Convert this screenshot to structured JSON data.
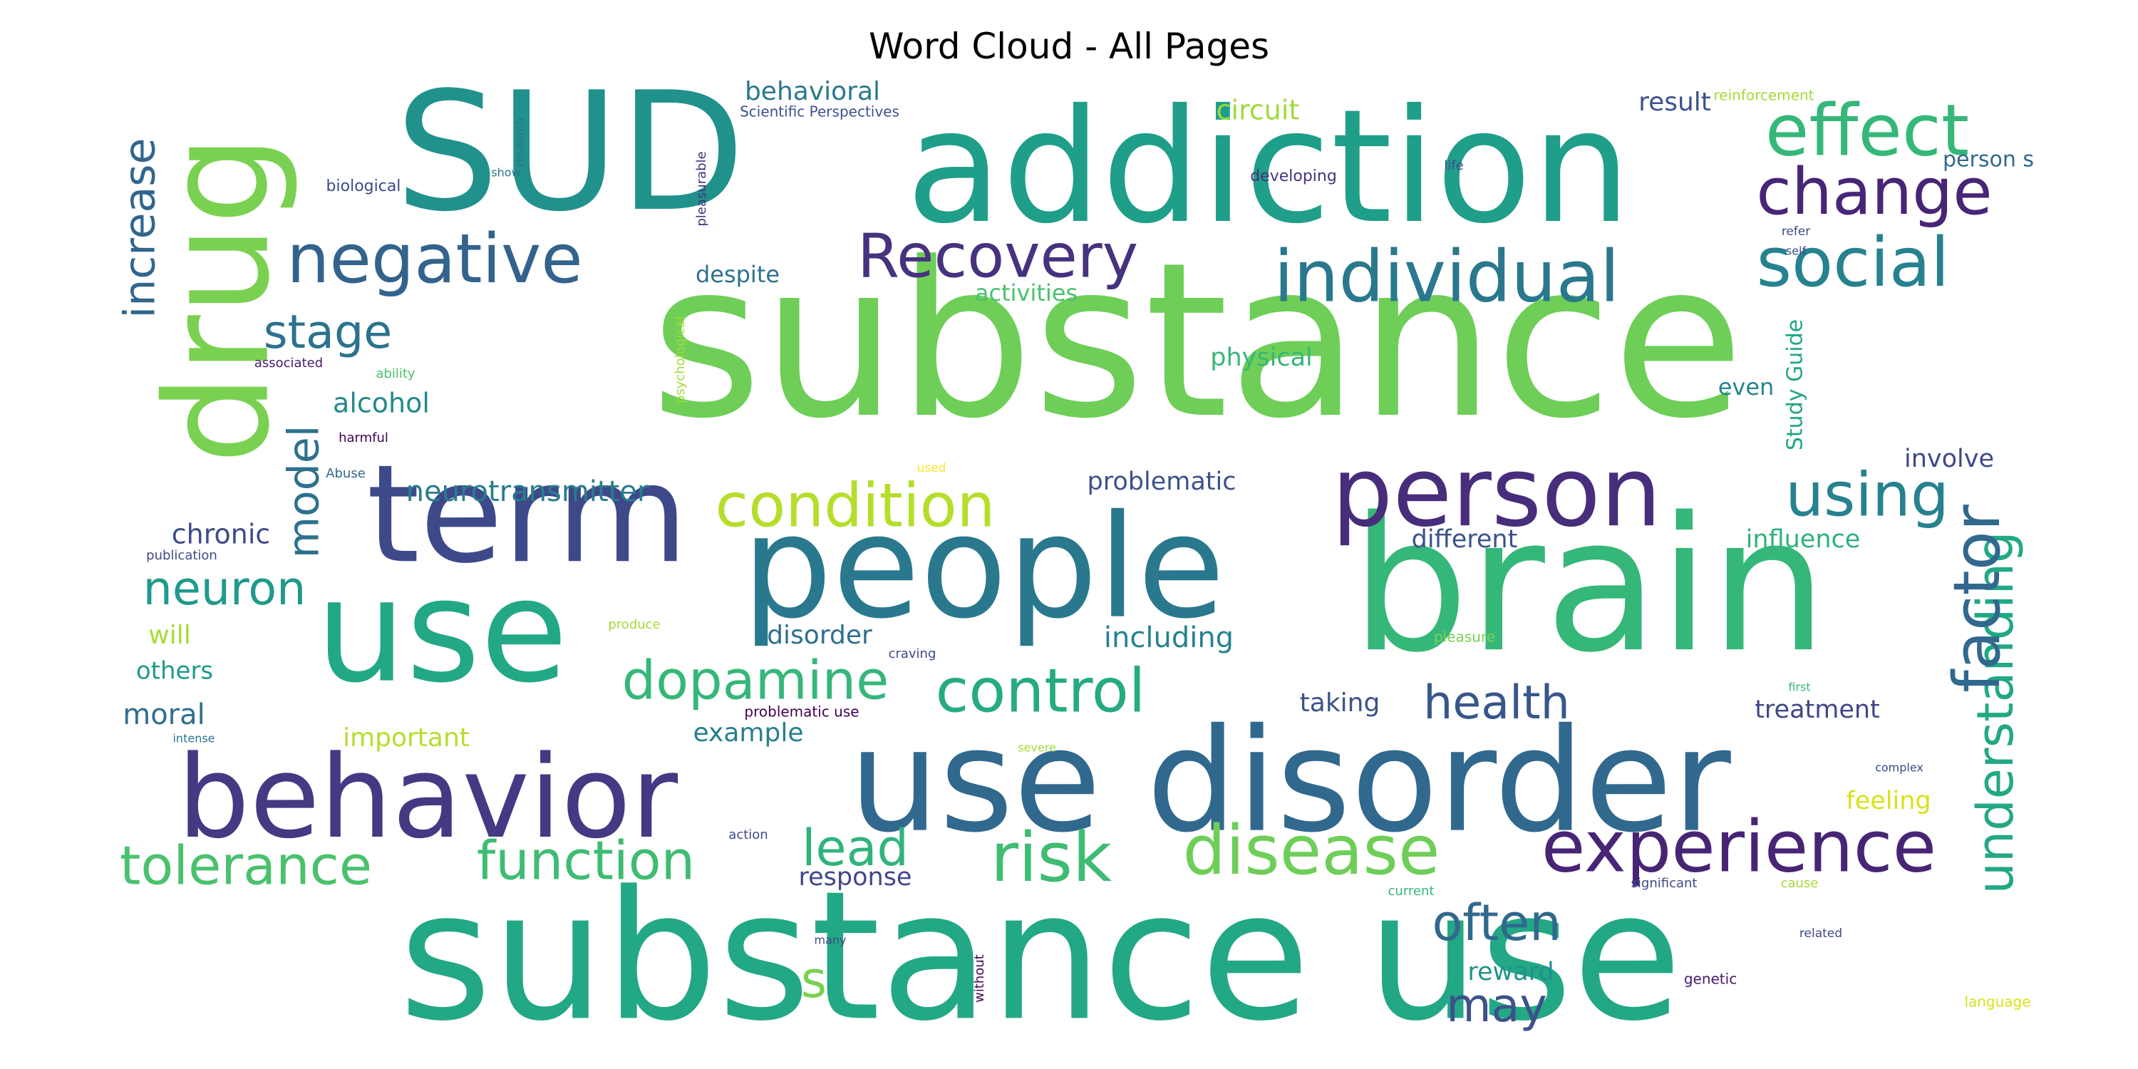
{
  "title": "Word Cloud - All Pages",
  "words": [
    {
      "text": "substance",
      "color": "#6ece58"
    },
    {
      "text": "substance use",
      "color": "#22a884"
    },
    {
      "text": "use disorder",
      "color": "#31688e"
    },
    {
      "text": "brain",
      "color": "#35b779"
    },
    {
      "text": "addiction",
      "color": "#1f9e89"
    },
    {
      "text": "SUD",
      "color": "#21918c"
    },
    {
      "text": "people",
      "color": "#2a788e"
    },
    {
      "text": "use",
      "color": "#22a884"
    },
    {
      "text": "behavior",
      "color": "#443983"
    },
    {
      "text": "term",
      "color": "#3e4989"
    },
    {
      "text": "drug",
      "color": "#7ad151"
    },
    {
      "text": "person",
      "color": "#472d7b"
    },
    {
      "text": "effect",
      "color": "#35b779"
    },
    {
      "text": "change",
      "color": "#482576"
    },
    {
      "text": "individual",
      "color": "#2a788e"
    },
    {
      "text": "social",
      "color": "#26828e"
    },
    {
      "text": "negative",
      "color": "#33638d"
    },
    {
      "text": "Recovery",
      "color": "#46327e"
    },
    {
      "text": "understanding",
      "color": "#22a884"
    },
    {
      "text": "experience",
      "color": "#482475"
    },
    {
      "text": "disease",
      "color": "#6ece58"
    },
    {
      "text": "risk",
      "color": "#3fbc73"
    },
    {
      "text": "factor",
      "color": "#31688e"
    },
    {
      "text": "using",
      "color": "#26828e"
    },
    {
      "text": "condition",
      "color": "#b5de2b"
    },
    {
      "text": "control",
      "color": "#25ab82"
    },
    {
      "text": "dopamine",
      "color": "#35b779"
    },
    {
      "text": "function",
      "color": "#3fbc73"
    },
    {
      "text": "tolerance",
      "color": "#4ac16d"
    },
    {
      "text": "lead",
      "color": "#2fb47c"
    },
    {
      "text": "often",
      "color": "#31688e"
    },
    {
      "text": "may",
      "color": "#3b528b"
    },
    {
      "text": "health",
      "color": "#39568c"
    },
    {
      "text": "neuron",
      "color": "#1f9a8a"
    },
    {
      "text": "model",
      "color": "#2d718e"
    },
    {
      "text": "stage",
      "color": "#2c728e"
    },
    {
      "text": "increase",
      "color": "#31668e"
    },
    {
      "text": "s",
      "color": "#7ad151"
    },
    {
      "text": "alcohol",
      "color": "#23898e"
    },
    {
      "text": "neurotransmitter",
      "color": "#287d8e"
    },
    {
      "text": "chronic",
      "color": "#3e4a89"
    },
    {
      "text": "will",
      "color": "#a5db36"
    },
    {
      "text": "others",
      "color": "#1f9a8a"
    },
    {
      "text": "moral",
      "color": "#2e6f8e"
    },
    {
      "text": "important",
      "color": "#b5de2b"
    },
    {
      "text": "example",
      "color": "#277f8e"
    },
    {
      "text": "disorder",
      "color": "#2d708e"
    },
    {
      "text": "including",
      "color": "#26828e"
    },
    {
      "text": "problematic",
      "color": "#3b528b"
    },
    {
      "text": "different",
      "color": "#3b528b"
    },
    {
      "text": "influence",
      "color": "#2db27d"
    },
    {
      "text": "taking",
      "color": "#3b528b"
    },
    {
      "text": "treatment",
      "color": "#404688"
    },
    {
      "text": "feeling",
      "color": "#d8e219"
    },
    {
      "text": "reward",
      "color": "#21918c"
    },
    {
      "text": "response",
      "color": "#404688"
    },
    {
      "text": "physical",
      "color": "#35b779"
    },
    {
      "text": "activities",
      "color": "#4ac16d"
    },
    {
      "text": "despite",
      "color": "#2c728e"
    },
    {
      "text": "circuit",
      "color": "#a0da39"
    },
    {
      "text": "behavioral",
      "color": "#2a788e"
    },
    {
      "text": "result",
      "color": "#3b528b"
    },
    {
      "text": "person s",
      "color": "#31688e"
    },
    {
      "text": "even",
      "color": "#25858e"
    },
    {
      "text": "involve",
      "color": "#3e4989"
    },
    {
      "text": "Study Guide",
      "color": "#21a585"
    },
    {
      "text": "Scientific Perspectives",
      "color": "#3b528b"
    },
    {
      "text": "reinforcement",
      "color": "#a5db36"
    },
    {
      "text": "biological",
      "color": "#3e4a89"
    },
    {
      "text": "research",
      "color": "#2c728e"
    },
    {
      "text": "show",
      "color": "#2c728e"
    },
    {
      "text": "pleasurable",
      "color": "#46327e"
    },
    {
      "text": "developing",
      "color": "#46327e"
    },
    {
      "text": "life",
      "color": "#3e4a89"
    },
    {
      "text": "refer",
      "color": "#3e4a89"
    },
    {
      "text": "self",
      "color": "#3e4a89"
    },
    {
      "text": "associated",
      "color": "#481a6c"
    },
    {
      "text": "ability",
      "color": "#4ac16d"
    },
    {
      "text": "harmful",
      "color": "#440154"
    },
    {
      "text": "psychological",
      "color": "#a0da39"
    },
    {
      "text": "Abuse",
      "color": "#31688e"
    },
    {
      "text": "used",
      "color": "#fde725"
    },
    {
      "text": "publication",
      "color": "#3e4a89"
    },
    {
      "text": "produce",
      "color": "#a5db36"
    },
    {
      "text": "craving",
      "color": "#3e4a89"
    },
    {
      "text": "pleasure",
      "color": "#7ad151"
    },
    {
      "text": "first",
      "color": "#35b779"
    },
    {
      "text": "problematic use",
      "color": "#440154"
    },
    {
      "text": "intense",
      "color": "#2c728e"
    },
    {
      "text": "severe",
      "color": "#a5db36"
    },
    {
      "text": "complex",
      "color": "#3e4a89"
    },
    {
      "text": "action",
      "color": "#3e4a89"
    },
    {
      "text": "significant",
      "color": "#3e4a89"
    },
    {
      "text": "current",
      "color": "#35b779"
    },
    {
      "text": "cause",
      "color": "#a5db36"
    },
    {
      "text": "many",
      "color": "#3e4a89"
    },
    {
      "text": "without",
      "color": "#440154"
    },
    {
      "text": "genetic",
      "color": "#481a6c"
    },
    {
      "text": "related",
      "color": "#3e4a89"
    },
    {
      "text": "language",
      "color": "#d8e219"
    }
  ]
}
